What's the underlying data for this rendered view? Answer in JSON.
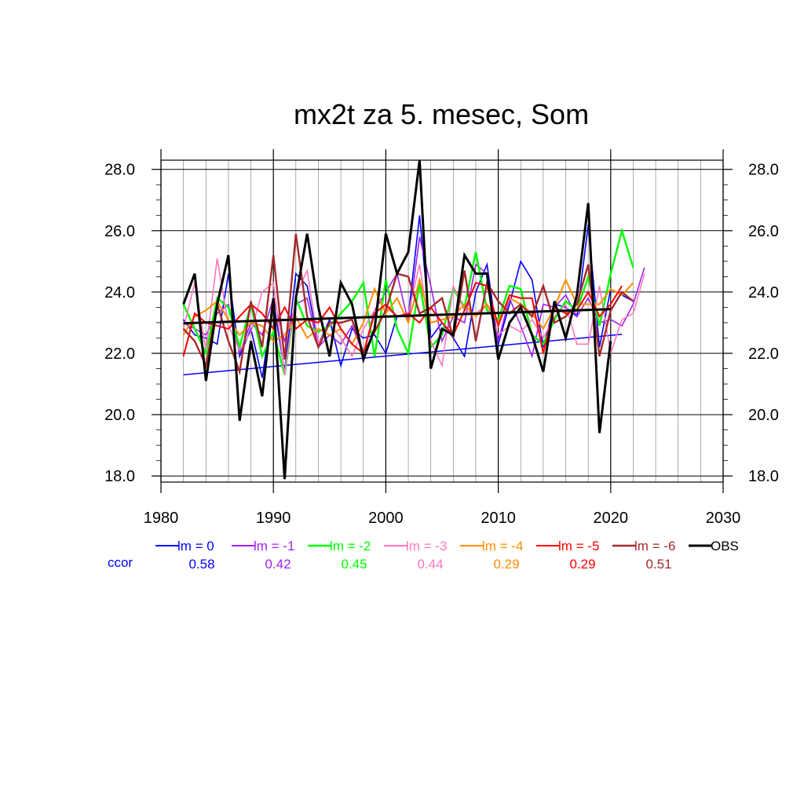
{
  "chart_data": {
    "type": "line",
    "title": "mx2t za 5. mesec, Som",
    "xlabel": "",
    "ylabel": "",
    "xlim": [
      1980,
      2030
    ],
    "ylim": [
      17.8,
      28.3
    ],
    "x_ticks": [
      "1980",
      "1990",
      "2000",
      "2010",
      "2020",
      "2030"
    ],
    "y_ticks": [
      "18.0",
      "20.0",
      "22.0",
      "24.0",
      "26.0",
      "28.0"
    ],
    "grid": true,
    "legend_position": "bottom",
    "ccor_label": "ccor",
    "series": [
      {
        "name": "lm = 0",
        "color": "#0000ff",
        "ccor": "0.58",
        "width": 1.6,
        "x_start": 1982,
        "values": [
          23.1,
          22.6,
          22.5,
          22.3,
          24.6,
          21.9,
          22.8,
          21.2,
          23.7,
          21.4,
          24.6,
          24.2,
          22.3,
          23.1,
          21.6,
          22.8,
          22.5,
          22.6,
          22.0,
          23.2,
          23.2,
          26.5,
          22.5,
          23.0,
          22.5,
          21.9,
          24.0,
          24.9,
          22.3,
          23.6,
          25.0,
          24.4,
          22.2,
          23.6,
          23.5,
          23.2,
          26.2,
          22.2,
          24.1,
          23.9,
          23.7
        ],
        "trend": {
          "x": [
            1982,
            2021
          ],
          "y": [
            21.3,
            22.62
          ]
        }
      },
      {
        "name": "lm = -1",
        "color": "#a020f0",
        "ccor": "0.42",
        "width": 1.6,
        "x_start": 1982,
        "values": [
          23.0,
          22.8,
          22.6,
          23.3,
          23.6,
          22.0,
          23.0,
          22.6,
          23.8,
          22.4,
          23.6,
          23.8,
          22.2,
          22.6,
          22.3,
          22.9,
          22.0,
          23.4,
          24.0,
          24.6,
          23.0,
          25.8,
          24.2,
          22.4,
          23.2,
          23.0,
          24.9,
          24.6,
          22.4,
          23.8,
          22.9,
          21.9,
          23.6,
          23.5,
          23.9,
          23.2,
          23.8,
          23.0,
          23.1,
          22.9,
          23.6,
          24.8
        ]
      },
      {
        "name": "lm = -2",
        "color": "#00ff00",
        "ccor": "0.45",
        "width": 2.4,
        "x_start": 1982,
        "values": [
          23.6,
          22.8,
          22.0,
          23.8,
          23.5,
          22.2,
          23.6,
          21.9,
          22.7,
          21.3,
          23.8,
          22.9,
          22.7,
          22.9,
          23.3,
          23.7,
          24.3,
          21.9,
          24.4,
          22.8,
          22.0,
          24.3,
          22.2,
          22.6,
          24.1,
          23.5,
          25.3,
          23.4,
          23.1,
          24.2,
          24.1,
          22.6,
          22.3,
          23.1,
          23.7,
          23.4,
          24.5,
          22.9,
          24.6,
          26.0,
          24.8
        ]
      },
      {
        "name": "lm = -3",
        "color": "#ff77bb",
        "ccor": "0.44",
        "width": 1.6,
        "x_start": 1982,
        "values": [
          22.8,
          24.3,
          22.1,
          25.1,
          22.9,
          22.1,
          22.7,
          24.0,
          24.3,
          21.3,
          23.9,
          24.7,
          22.3,
          23.0,
          22.5,
          21.9,
          22.8,
          23.4,
          23.5,
          23.2,
          23.3,
          24.9,
          22.4,
          21.6,
          24.2,
          23.4,
          23.3,
          23.6,
          22.6,
          22.9,
          22.7,
          23.1,
          22.5,
          23.2,
          23.6,
          22.3,
          22.3,
          24.2,
          22.0,
          23.1,
          23.3,
          24.6
        ]
      },
      {
        "name": "lm = -4",
        "color": "#ff8c00",
        "ccor": "0.29",
        "width": 2.0,
        "x_start": 1982,
        "values": [
          22.6,
          23.2,
          23.4,
          23.7,
          23.1,
          22.6,
          23.0,
          22.9,
          22.4,
          22.6,
          23.2,
          22.5,
          22.8,
          22.6,
          22.8,
          22.3,
          23.0,
          24.1,
          23.3,
          23.8,
          23.0,
          24.4,
          23.0,
          23.1,
          23.2,
          23.6,
          23.2,
          23.6,
          23.0,
          23.8,
          23.6,
          23.3,
          22.8,
          23.5,
          24.4,
          23.6,
          23.6,
          23.6,
          24.1,
          23.9,
          24.3
        ]
      },
      {
        "name": "lm = -5",
        "color": "#ff0000",
        "ccor": "0.29",
        "width": 2.0,
        "x_start": 1982,
        "values": [
          21.9,
          23.3,
          23.0,
          22.9,
          22.8,
          23.2,
          23.6,
          23.3,
          22.8,
          23.5,
          22.8,
          23.1,
          23.0,
          23.5,
          22.8,
          22.3,
          22.0,
          23.3,
          23.6,
          23.2,
          23.3,
          23.0,
          23.5,
          23.0,
          22.6,
          23.4,
          24.3,
          24.2,
          22.9,
          23.9,
          23.8,
          23.8,
          22.0,
          23.5,
          23.3,
          23.4,
          24.0,
          23.2,
          23.6,
          24.2
        ]
      },
      {
        "name": "lm = -6",
        "color": "#a52a2a",
        "ccor": "0.51",
        "width": 2.4,
        "x_start": 1982,
        "values": [
          22.8,
          22.4,
          21.6,
          23.6,
          22.4,
          21.4,
          23.7,
          22.2,
          25.2,
          21.8,
          25.9,
          23.2,
          22.2,
          23.0,
          23.0,
          23.1,
          22.0,
          22.7,
          23.4,
          24.6,
          24.5,
          23.3,
          23.5,
          23.8,
          22.5,
          24.7,
          22.4,
          24.3,
          23.7,
          23.3,
          23.6,
          23.2,
          24.2,
          23.0,
          23.2,
          23.6,
          24.9,
          21.9,
          23.4,
          24.0,
          23.7
        ]
      },
      {
        "name": "OBS",
        "color": "#000000",
        "ccor": "",
        "width": 3.0,
        "x_start": 1982,
        "values": [
          23.6,
          24.6,
          21.1,
          23.6,
          25.2,
          19.8,
          22.4,
          20.6,
          23.8,
          17.9,
          23.8,
          25.9,
          23.5,
          21.9,
          24.3,
          23.6,
          21.8,
          22.8,
          25.9,
          24.6,
          25.3,
          28.3,
          21.5,
          22.8,
          22.6,
          25.2,
          24.6,
          24.6,
          21.8,
          23.0,
          23.5,
          22.6,
          21.4,
          23.7,
          22.5,
          23.9,
          26.9,
          19.4,
          22.4
        ],
        "trend": {
          "x": [
            1982,
            2020
          ],
          "y": [
            22.98,
            23.44
          ]
        }
      }
    ]
  }
}
